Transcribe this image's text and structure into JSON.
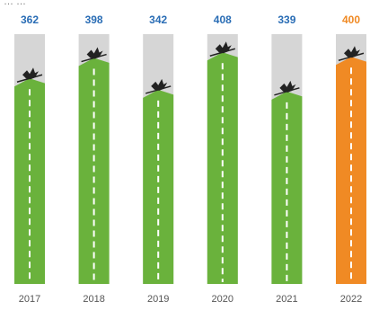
{
  "header": {
    "caption": "… …"
  },
  "chart_data": {
    "type": "bar",
    "title": "",
    "xlabel": "",
    "ylabel": "",
    "categories": [
      "2017",
      "2018",
      "2019",
      "2020",
      "2021",
      "2022"
    ],
    "values": [
      362,
      398,
      342,
      408,
      339,
      400
    ],
    "value_labels": [
      "362",
      "398",
      "342",
      "408",
      "339",
      "400"
    ],
    "highlight_index": 5,
    "ylim": [
      0,
      440
    ],
    "grid": false,
    "legend": "none",
    "colors": {
      "bar": "#6ab23c",
      "highlight": "#f08a24",
      "background_column": "#d6d6d6",
      "value_label": "#2a6db5",
      "highlight_label": "#f08a24",
      "marker": "#222222",
      "dash": "#ffffff"
    },
    "marker_icon": "bird-icon"
  }
}
